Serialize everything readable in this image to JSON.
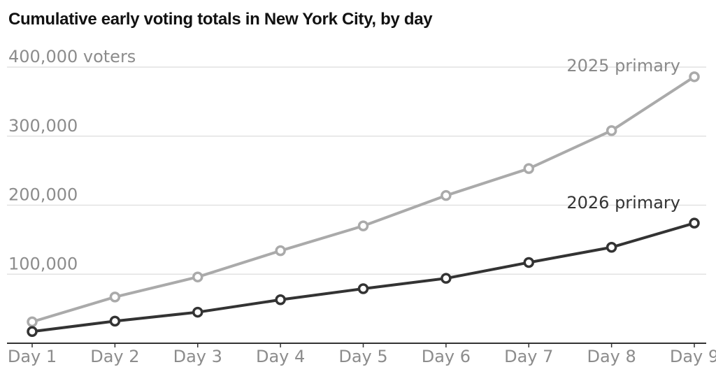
{
  "title": "Cumulative early voting totals in New York City, by day",
  "chart_data": {
    "type": "line",
    "title": "Cumulative early voting totals in New York City, by day",
    "xlabel": "",
    "ylabel": "",
    "x": [
      "Day 1",
      "Day 2",
      "Day 3",
      "Day 4",
      "Day 5",
      "Day 6",
      "Day 7",
      "Day 8",
      "Day 9"
    ],
    "ylim": [
      0,
      400000
    ],
    "y_ticks": [
      {
        "value": 400000,
        "label": "400,000 voters"
      },
      {
        "value": 300000,
        "label": "300,000"
      },
      {
        "value": 200000,
        "label": "200,000"
      },
      {
        "value": 100000,
        "label": "100,000"
      }
    ],
    "grid": true,
    "series": [
      {
        "name": "2025 primary",
        "color": "#aaaaaa",
        "values": [
          31000,
          67000,
          96000,
          134000,
          170000,
          214000,
          253000,
          308000,
          386000
        ]
      },
      {
        "name": "2026 primary",
        "color": "#333333",
        "values": [
          17000,
          32000,
          45000,
          63000,
          79000,
          94000,
          117000,
          139000,
          174000
        ]
      }
    ]
  }
}
